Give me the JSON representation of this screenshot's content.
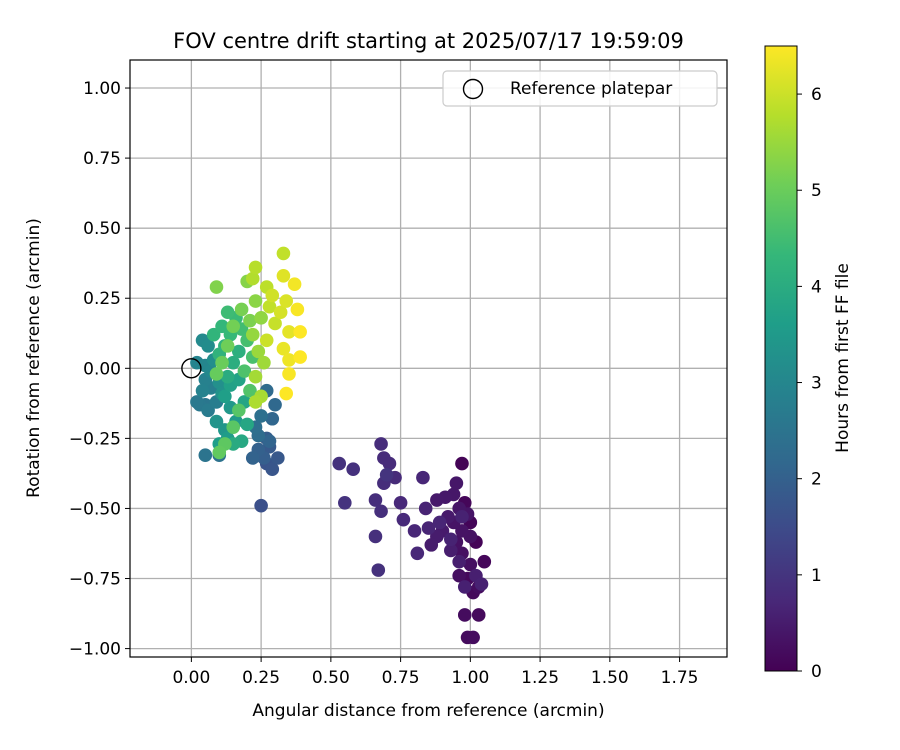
{
  "chart_data": {
    "type": "scatter",
    "title": "FOV centre drift starting at 2025/07/17 19:59:09",
    "xlabel": "Angular distance from reference (arcmin)",
    "ylabel": "Rotation from reference (arcmin)",
    "xlim": [
      -0.22,
      1.92
    ],
    "ylim": [
      -1.03,
      1.1
    ],
    "xticks": [
      0.0,
      0.25,
      0.5,
      0.75,
      1.0,
      1.25,
      1.5,
      1.75
    ],
    "xtick_labels": [
      "0.00",
      "0.25",
      "0.50",
      "0.75",
      "1.00",
      "1.25",
      "1.50",
      "1.75"
    ],
    "yticks": [
      1.0,
      0.75,
      0.5,
      0.25,
      0.0,
      -0.25,
      -0.5,
      -0.75,
      -1.0
    ],
    "ytick_labels": [
      "1.00",
      "0.75",
      "0.50",
      "0.25",
      "0.00",
      "−0.25",
      "−0.50",
      "−0.75",
      "−1.00"
    ],
    "grid": true,
    "legend": {
      "label": "Reference platepar",
      "placement": "top-right"
    },
    "reference_point": {
      "x": 0.0,
      "y": 0.0
    },
    "colorbar": {
      "label": "Hours from first FF file",
      "range": [
        0,
        6.5
      ],
      "ticks": [
        0,
        1,
        2,
        3,
        4,
        5,
        6
      ],
      "tick_labels": [
        "0",
        "1",
        "2",
        "3",
        "4",
        "5",
        "6"
      ],
      "colormap": "viridis",
      "colormap_stops": [
        "#440154",
        "#482878",
        "#3e4989",
        "#31688e",
        "#26828e",
        "#1f9e89",
        "#35b779",
        "#6ece58",
        "#b5de2b",
        "#fde725"
      ]
    },
    "points": [
      {
        "x": 0.97,
        "y": -0.34,
        "h": 0.05
      },
      {
        "x": 1.02,
        "y": -0.62,
        "h": 0.06
      },
      {
        "x": 1.0,
        "y": -0.55,
        "h": 0.08
      },
      {
        "x": 0.98,
        "y": -0.48,
        "h": 0.1
      },
      {
        "x": 1.05,
        "y": -0.69,
        "h": 0.12
      },
      {
        "x": 0.99,
        "y": -0.75,
        "h": 0.13
      },
      {
        "x": 1.01,
        "y": -0.8,
        "h": 0.15
      },
      {
        "x": 1.03,
        "y": -0.88,
        "h": 0.16
      },
      {
        "x": 0.99,
        "y": -0.96,
        "h": 0.18
      },
      {
        "x": 1.01,
        "y": -0.96,
        "h": 0.2
      },
      {
        "x": 0.98,
        "y": -0.88,
        "h": 0.21
      },
      {
        "x": 1.03,
        "y": -0.78,
        "h": 0.23
      },
      {
        "x": 0.96,
        "y": -0.74,
        "h": 0.25
      },
      {
        "x": 1.0,
        "y": -0.7,
        "h": 0.26
      },
      {
        "x": 0.97,
        "y": -0.66,
        "h": 0.28
      },
      {
        "x": 0.95,
        "y": -0.62,
        "h": 0.3
      },
      {
        "x": 1.0,
        "y": -0.6,
        "h": 0.31
      },
      {
        "x": 0.97,
        "y": -0.58,
        "h": 0.33
      },
      {
        "x": 0.94,
        "y": -0.55,
        "h": 0.35
      },
      {
        "x": 0.99,
        "y": -0.52,
        "h": 0.36
      },
      {
        "x": 0.96,
        "y": -0.5,
        "h": 0.38
      },
      {
        "x": 0.94,
        "y": -0.45,
        "h": 0.4
      },
      {
        "x": 0.95,
        "y": -0.41,
        "h": 0.41
      },
      {
        "x": 0.91,
        "y": -0.46,
        "h": 0.43
      },
      {
        "x": 0.88,
        "y": -0.47,
        "h": 0.45
      },
      {
        "x": 0.92,
        "y": -0.53,
        "h": 0.46
      },
      {
        "x": 0.9,
        "y": -0.58,
        "h": 0.48
      },
      {
        "x": 0.88,
        "y": -0.6,
        "h": 0.5
      },
      {
        "x": 0.86,
        "y": -0.63,
        "h": 0.51
      },
      {
        "x": 0.93,
        "y": -0.65,
        "h": 0.53
      },
      {
        "x": 0.96,
        "y": -0.69,
        "h": 0.55
      },
      {
        "x": 1.02,
        "y": -0.74,
        "h": 0.56
      },
      {
        "x": 0.98,
        "y": -0.78,
        "h": 0.58
      },
      {
        "x": 1.04,
        "y": -0.77,
        "h": 0.6
      },
      {
        "x": 0.97,
        "y": -0.53,
        "h": 0.61
      },
      {
        "x": 0.93,
        "y": -0.61,
        "h": 0.63
      },
      {
        "x": 0.84,
        "y": -0.5,
        "h": 0.65
      },
      {
        "x": 0.85,
        "y": -0.57,
        "h": 0.66
      },
      {
        "x": 0.89,
        "y": -0.55,
        "h": 0.68
      },
      {
        "x": 0.83,
        "y": -0.39,
        "h": 0.7
      },
      {
        "x": 0.8,
        "y": -0.58,
        "h": 0.71
      },
      {
        "x": 0.81,
        "y": -0.66,
        "h": 0.73
      },
      {
        "x": 0.75,
        "y": -0.48,
        "h": 0.75
      },
      {
        "x": 0.76,
        "y": -0.54,
        "h": 0.76
      },
      {
        "x": 0.73,
        "y": -0.39,
        "h": 0.78
      },
      {
        "x": 0.69,
        "y": -0.32,
        "h": 0.8
      },
      {
        "x": 0.71,
        "y": -0.34,
        "h": 0.81
      },
      {
        "x": 0.68,
        "y": -0.27,
        "h": 0.83
      },
      {
        "x": 0.69,
        "y": -0.41,
        "h": 0.85
      },
      {
        "x": 0.66,
        "y": -0.47,
        "h": 0.86
      },
      {
        "x": 0.68,
        "y": -0.51,
        "h": 0.88
      },
      {
        "x": 0.66,
        "y": -0.6,
        "h": 0.9
      },
      {
        "x": 0.67,
        "y": -0.72,
        "h": 0.91
      },
      {
        "x": 0.58,
        "y": -0.36,
        "h": 0.93
      },
      {
        "x": 0.53,
        "y": -0.34,
        "h": 0.95
      },
      {
        "x": 0.55,
        "y": -0.48,
        "h": 0.96
      },
      {
        "x": 0.7,
        "y": -0.38,
        "h": 0.98
      },
      {
        "x": 0.25,
        "y": -0.49,
        "h": 1.6
      },
      {
        "x": 0.27,
        "y": -0.34,
        "h": 1.7
      },
      {
        "x": 0.29,
        "y": -0.36,
        "h": 1.75
      },
      {
        "x": 0.31,
        "y": -0.32,
        "h": 1.8
      },
      {
        "x": 0.28,
        "y": -0.28,
        "h": 1.85
      },
      {
        "x": 0.27,
        "y": -0.25,
        "h": 1.9
      },
      {
        "x": 0.26,
        "y": -0.32,
        "h": 1.95
      },
      {
        "x": 0.24,
        "y": -0.29,
        "h": 2.0
      },
      {
        "x": 0.22,
        "y": -0.32,
        "h": 2.05
      },
      {
        "x": 0.28,
        "y": -0.26,
        "h": 2.1
      },
      {
        "x": 0.29,
        "y": -0.18,
        "h": 2.15
      },
      {
        "x": 0.3,
        "y": -0.13,
        "h": 2.2
      },
      {
        "x": 0.27,
        "y": -0.08,
        "h": 2.25
      },
      {
        "x": 0.24,
        "y": -0.24,
        "h": 2.3
      },
      {
        "x": 0.23,
        "y": -0.21,
        "h": 2.35
      },
      {
        "x": 0.25,
        "y": -0.17,
        "h": 2.4
      },
      {
        "x": 0.1,
        "y": -0.31,
        "h": 2.45
      },
      {
        "x": 0.05,
        "y": -0.31,
        "h": 2.5
      },
      {
        "x": 0.05,
        "y": -0.13,
        "h": 2.55
      },
      {
        "x": 0.03,
        "y": -0.13,
        "h": 2.6
      },
      {
        "x": 0.02,
        "y": -0.12,
        "h": 2.65
      },
      {
        "x": 0.06,
        "y": -0.15,
        "h": 2.7
      },
      {
        "x": 0.09,
        "y": -0.12,
        "h": 2.75
      },
      {
        "x": 0.07,
        "y": -0.07,
        "h": 2.8
      },
      {
        "x": 0.05,
        "y": -0.04,
        "h": 2.85
      },
      {
        "x": 0.04,
        "y": -0.08,
        "h": 2.9
      },
      {
        "x": 0.02,
        "y": 0.02,
        "h": 2.95
      },
      {
        "x": 0.05,
        "y": 0.01,
        "h": 3.0
      },
      {
        "x": 0.07,
        "y": -0.01,
        "h": 3.05
      },
      {
        "x": 0.04,
        "y": 0.1,
        "h": 3.1
      },
      {
        "x": 0.06,
        "y": 0.08,
        "h": 3.15
      },
      {
        "x": 0.08,
        "y": 0.03,
        "h": 3.2
      },
      {
        "x": 0.1,
        "y": -0.05,
        "h": 3.25
      },
      {
        "x": 0.11,
        "y": -0.09,
        "h": 3.3
      },
      {
        "x": 0.09,
        "y": -0.19,
        "h": 3.35
      },
      {
        "x": 0.12,
        "y": -0.22,
        "h": 3.4
      },
      {
        "x": 0.14,
        "y": -0.14,
        "h": 3.45
      },
      {
        "x": 0.16,
        "y": -0.19,
        "h": 3.5
      },
      {
        "x": 0.13,
        "y": -0.25,
        "h": 3.55
      },
      {
        "x": 0.1,
        "y": -0.27,
        "h": 3.6
      },
      {
        "x": 0.12,
        "y": -0.1,
        "h": 3.65
      },
      {
        "x": 0.14,
        "y": -0.06,
        "h": 3.7
      },
      {
        "x": 0.17,
        "y": -0.04,
        "h": 3.75
      },
      {
        "x": 0.19,
        "y": -0.12,
        "h": 3.8
      },
      {
        "x": 0.2,
        "y": -0.2,
        "h": 3.85
      },
      {
        "x": 0.18,
        "y": -0.26,
        "h": 3.9
      },
      {
        "x": 0.15,
        "y": -0.27,
        "h": 3.95
      },
      {
        "x": 0.13,
        "y": -0.03,
        "h": 4.0
      },
      {
        "x": 0.15,
        "y": 0.02,
        "h": 4.05
      },
      {
        "x": 0.17,
        "y": 0.06,
        "h": 4.1
      },
      {
        "x": 0.12,
        "y": 0.08,
        "h": 4.15
      },
      {
        "x": 0.1,
        "y": 0.05,
        "h": 4.2
      },
      {
        "x": 0.08,
        "y": 0.12,
        "h": 4.25
      },
      {
        "x": 0.11,
        "y": 0.15,
        "h": 4.3
      },
      {
        "x": 0.14,
        "y": 0.12,
        "h": 4.35
      },
      {
        "x": 0.16,
        "y": 0.18,
        "h": 4.4
      },
      {
        "x": 0.13,
        "y": 0.2,
        "h": 4.45
      },
      {
        "x": 0.18,
        "y": 0.14,
        "h": 4.5
      },
      {
        "x": 0.2,
        "y": 0.1,
        "h": 4.55
      },
      {
        "x": 0.22,
        "y": 0.04,
        "h": 4.6
      },
      {
        "x": 0.19,
        "y": -0.01,
        "h": 4.65
      },
      {
        "x": 0.21,
        "y": -0.08,
        "h": 4.7
      },
      {
        "x": 0.17,
        "y": -0.15,
        "h": 4.75
      },
      {
        "x": 0.15,
        "y": -0.21,
        "h": 4.8
      },
      {
        "x": 0.12,
        "y": -0.27,
        "h": 4.85
      },
      {
        "x": 0.1,
        "y": -0.3,
        "h": 4.9
      },
      {
        "x": 0.09,
        "y": -0.02,
        "h": 4.95
      },
      {
        "x": 0.11,
        "y": 0.02,
        "h": 5.0
      },
      {
        "x": 0.13,
        "y": 0.08,
        "h": 5.05
      },
      {
        "x": 0.15,
        "y": 0.15,
        "h": 5.1
      },
      {
        "x": 0.18,
        "y": 0.21,
        "h": 5.15
      },
      {
        "x": 0.21,
        "y": 0.17,
        "h": 5.2
      },
      {
        "x": 0.09,
        "y": 0.29,
        "h": 5.25
      },
      {
        "x": 0.2,
        "y": 0.31,
        "h": 5.3
      },
      {
        "x": 0.23,
        "y": 0.24,
        "h": 5.35
      },
      {
        "x": 0.25,
        "y": 0.18,
        "h": 5.4
      },
      {
        "x": 0.22,
        "y": 0.12,
        "h": 5.45
      },
      {
        "x": 0.24,
        "y": 0.06,
        "h": 5.5
      },
      {
        "x": 0.26,
        "y": 0.02,
        "h": 5.55
      },
      {
        "x": 0.23,
        "y": -0.03,
        "h": 5.6
      },
      {
        "x": 0.25,
        "y": -0.1,
        "h": 5.65
      },
      {
        "x": 0.23,
        "y": -0.12,
        "h": 5.7
      },
      {
        "x": 0.22,
        "y": 0.32,
        "h": 5.75
      },
      {
        "x": 0.23,
        "y": 0.36,
        "h": 5.8
      },
      {
        "x": 0.27,
        "y": 0.29,
        "h": 5.85
      },
      {
        "x": 0.28,
        "y": 0.22,
        "h": 5.9
      },
      {
        "x": 0.3,
        "y": 0.16,
        "h": 5.95
      },
      {
        "x": 0.27,
        "y": 0.1,
        "h": 6.0
      },
      {
        "x": 0.29,
        "y": 0.26,
        "h": 6.05
      },
      {
        "x": 0.32,
        "y": 0.2,
        "h": 6.1
      },
      {
        "x": 0.34,
        "y": 0.24,
        "h": 6.15
      },
      {
        "x": 0.33,
        "y": 0.33,
        "h": 6.2
      },
      {
        "x": 0.35,
        "y": 0.13,
        "h": 6.25
      },
      {
        "x": 0.33,
        "y": 0.07,
        "h": 6.3
      },
      {
        "x": 0.35,
        "y": 0.03,
        "h": 6.35
      },
      {
        "x": 0.37,
        "y": 0.3,
        "h": 6.4
      },
      {
        "x": 0.38,
        "y": 0.21,
        "h": 6.45
      },
      {
        "x": 0.39,
        "y": 0.13,
        "h": 6.5
      },
      {
        "x": 0.34,
        "y": -0.09,
        "h": 6.5
      },
      {
        "x": 0.35,
        "y": -0.02,
        "h": 6.45
      },
      {
        "x": 0.33,
        "y": 0.41,
        "h": 5.9
      },
      {
        "x": 0.39,
        "y": 0.04,
        "h": 6.5
      }
    ]
  }
}
